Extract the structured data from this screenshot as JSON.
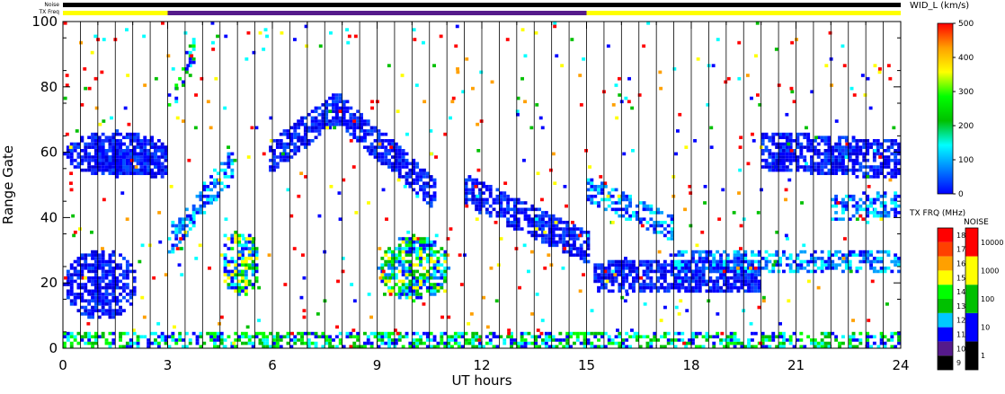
{
  "chart_data": {
    "type": "heatmap",
    "title": "",
    "xlabel": "UT hours",
    "ylabel": "Range Gate",
    "xlim": [
      0,
      24
    ],
    "ylim": [
      0,
      100
    ],
    "x_ticks": [
      0,
      3,
      6,
      9,
      12,
      15,
      18,
      21,
      24
    ],
    "y_ticks": [
      0,
      20,
      40,
      60,
      80,
      100
    ],
    "grid": "vertical lines at scan boundaries",
    "top_strips": {
      "noise_label": "Noise",
      "txfreq_label": "TX Freq",
      "txfreq_segments": [
        {
          "start": 0,
          "end": 3,
          "color": "#ffff00"
        },
        {
          "start": 3,
          "end": 15,
          "color": "#551a8b"
        },
        {
          "start": 15,
          "end": 24,
          "color": "#ffff00"
        }
      ]
    },
    "colorbars": [
      {
        "title": "WID_L (km/s)",
        "ticks": [
          "0",
          "100",
          "200",
          "300",
          "400",
          "500"
        ],
        "stops": [
          "#0000ff",
          "#0080ff",
          "#00ffff",
          "#00c000",
          "#00ff00",
          "#ffff00",
          "#ffa000",
          "#ff0000"
        ]
      },
      {
        "title": "TX FRQ (MHz)",
        "ticks": [
          "9",
          "10",
          "11",
          "12",
          "13",
          "14",
          "15",
          "16",
          "17",
          "18"
        ],
        "colors": [
          "#000000",
          "#551a8b",
          "#0000ff",
          "#00c8ff",
          "#00c000",
          "#00ff00",
          "#ffff00",
          "#ffa000",
          "#ff4000",
          "#ff0000"
        ]
      },
      {
        "title": "NOISE",
        "ticks": [
          "1",
          "10",
          "100",
          "1000",
          "10000"
        ],
        "colors": [
          "#000000",
          "#0000ff",
          "#00c000",
          "#ffff00",
          "#ff0000"
        ]
      }
    ],
    "features": [
      {
        "name": "slant band 1",
        "x0": 3.0,
        "x1": 4.8,
        "y0": 32,
        "y1": 56,
        "width": 4,
        "weight": "medium"
      },
      {
        "name": "slant band 2",
        "x0": 3.0,
        "x1": 3.8,
        "y0": 75,
        "y1": 92,
        "width": 4,
        "weight": "low"
      },
      {
        "name": "arc rise",
        "x0": 5.9,
        "x1": 7.8,
        "y0": 58,
        "y1": 73,
        "width": 4,
        "weight": "high"
      },
      {
        "name": "arc fall",
        "x0": 7.8,
        "x1": 10.6,
        "y0": 73,
        "y1": 47,
        "width": 4,
        "weight": "high"
      },
      {
        "name": "band 60",
        "x0": 1.0,
        "x1": 3.0,
        "y0": 59,
        "y1": 56,
        "width": 4,
        "weight": "high"
      },
      {
        "name": "band 60 right",
        "x0": 20.0,
        "x1": 24.0,
        "y0": 60,
        "y1": 57,
        "width": 5,
        "weight": "high"
      },
      {
        "name": "descending band",
        "x0": 11.5,
        "x1": 15.0,
        "y0": 48,
        "y1": 30,
        "width": 4,
        "weight": "high"
      },
      {
        "name": "descending band 2",
        "x0": 15.0,
        "x1": 17.5,
        "y0": 48,
        "y1": 36,
        "width": 3,
        "weight": "medium"
      },
      {
        "name": "band 20",
        "x0": 15.2,
        "x1": 20.0,
        "y0": 22,
        "y1": 21,
        "width": 4,
        "weight": "high"
      },
      {
        "name": "band 25",
        "x0": 17.5,
        "x1": 24.0,
        "y0": 26,
        "y1": 26,
        "width": 3,
        "weight": "medium"
      },
      {
        "name": "band 42",
        "x0": 22.0,
        "x1": 24.0,
        "y0": 42,
        "y1": 44,
        "width": 3,
        "weight": "medium"
      }
    ],
    "blobs": [
      {
        "name": "low-range echo",
        "x0": 0.0,
        "x1": 2.1,
        "y0": 8,
        "y1": 30,
        "weight": "high"
      },
      {
        "name": "patch 5h",
        "x0": 4.5,
        "x1": 5.6,
        "y0": 15,
        "y1": 36,
        "weight": "mixed"
      },
      {
        "name": "patch 10h",
        "x0": 9.0,
        "x1": 11.0,
        "y0": 14,
        "y1": 34,
        "weight": "mixed"
      },
      {
        "name": "band 60 left",
        "x0": 0.0,
        "x1": 3.0,
        "y0": 52,
        "y1": 66,
        "weight": "high"
      },
      {
        "name": "ground scatter gate 0",
        "x0": 0.0,
        "x1": 24.0,
        "y0": 0,
        "y1": 4,
        "weight": "low"
      }
    ]
  }
}
